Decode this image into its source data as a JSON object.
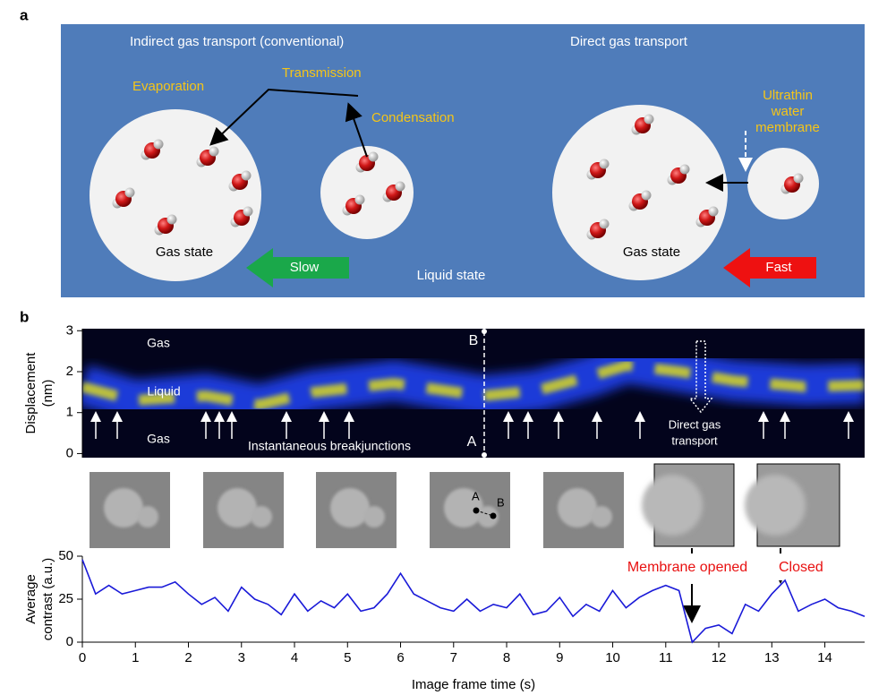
{
  "panel_a": {
    "label": "a",
    "left_title": "Indirect gas transport (conventional)",
    "right_title": "Direct gas transport",
    "evaporation": "Evaporation",
    "transmission": "Transmission",
    "condensation": "Condensation",
    "membrane": [
      "Ultrathin",
      "water",
      "membrane"
    ],
    "gas_state_left": "Gas state",
    "gas_state_right": "Gas state",
    "slow": "Slow",
    "fast": "Fast",
    "liquid_state": "Liquid state"
  },
  "panel_b": {
    "label": "b",
    "micrograph_points": [
      "A",
      "B"
    ],
    "membrane_opened": "Membrane opened",
    "closed": "Closed"
  },
  "chart_data": [
    {
      "type": "kymograph",
      "ylabel": [
        "Displacement",
        "(nm)"
      ],
      "ylim": [
        -0.1,
        3.05
      ],
      "yticks": [
        0,
        1,
        2,
        3
      ],
      "labels": {
        "gas_top": "Gas",
        "liquid": "Liquid",
        "gas_bottom": "Gas",
        "breakjunctions": "Instantaneous breakjunctions",
        "direct": [
          "Direct gas",
          "transport"
        ],
        "point_b": "B",
        "point_a": "A"
      }
    },
    {
      "type": "line",
      "x": [
        0,
        0.25,
        0.5,
        0.75,
        1,
        1.25,
        1.5,
        1.75,
        2,
        2.25,
        2.5,
        2.75,
        3,
        3.25,
        3.5,
        3.75,
        4,
        4.25,
        4.5,
        4.75,
        5,
        5.25,
        5.5,
        5.75,
        6,
        6.25,
        6.5,
        6.75,
        7,
        7.25,
        7.5,
        7.75,
        8,
        8.25,
        8.5,
        8.75,
        9,
        9.25,
        9.5,
        9.75,
        10,
        10.25,
        10.5,
        10.75,
        11,
        11.25,
        11.5,
        11.75,
        12,
        12.25,
        12.5,
        12.75,
        13,
        13.25,
        13.5,
        13.75,
        14,
        14.25,
        14.5,
        14.75
      ],
      "series": [
        {
          "color": "#1a1ad8",
          "values": [
            48,
            28,
            33,
            28,
            30,
            32,
            32,
            35,
            28,
            22,
            26,
            18,
            32,
            25,
            22,
            16,
            28,
            18,
            24,
            20,
            28,
            18,
            20,
            28,
            40,
            28,
            24,
            20,
            18,
            25,
            18,
            22,
            20,
            28,
            16,
            18,
            26,
            15,
            22,
            18,
            30,
            20,
            26,
            30,
            33,
            30,
            0,
            8,
            10,
            5,
            22,
            18,
            28,
            36,
            18,
            22,
            25,
            20,
            18,
            15
          ]
        }
      ],
      "xlim": [
        0,
        14.75
      ],
      "ylim": [
        0,
        50
      ],
      "xticks": [
        0,
        1,
        2,
        3,
        4,
        5,
        6,
        7,
        8,
        9,
        10,
        11,
        12,
        13,
        14
      ],
      "yticks": [
        0,
        25,
        50
      ],
      "xlabel": "Image frame time (s)",
      "ylabel": [
        "Average",
        "contrast (a.u.)"
      ]
    }
  ]
}
